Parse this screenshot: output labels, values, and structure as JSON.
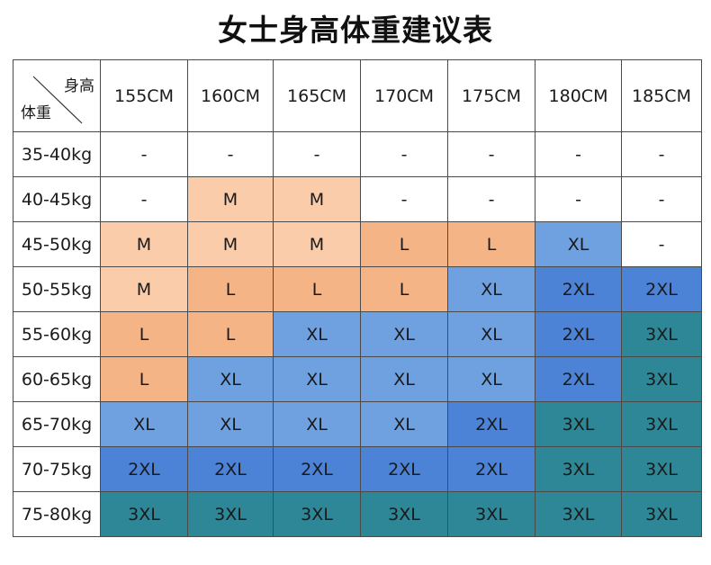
{
  "title": "女士身高体重建议表",
  "corner": {
    "height_label": "身高",
    "weight_label": "体重"
  },
  "heights": [
    "155CM",
    "160CM",
    "165CM",
    "170CM",
    "175CM",
    "180CM",
    "185CM"
  ],
  "rows": [
    {
      "weight": "35-40kg",
      "sizes": [
        "-",
        "-",
        "-",
        "-",
        "-",
        "-",
        "-"
      ]
    },
    {
      "weight": "40-45kg",
      "sizes": [
        "-",
        "M",
        "M",
        "-",
        "-",
        "-",
        "-"
      ]
    },
    {
      "weight": "45-50kg",
      "sizes": [
        "M",
        "M",
        "M",
        "L",
        "L",
        "XL",
        "-"
      ]
    },
    {
      "weight": "50-55kg",
      "sizes": [
        "M",
        "L",
        "L",
        "L",
        "XL",
        "2XL",
        "2XL"
      ]
    },
    {
      "weight": "55-60kg",
      "sizes": [
        "L",
        "L",
        "XL",
        "XL",
        "XL",
        "2XL",
        "3XL"
      ]
    },
    {
      "weight": "60-65kg",
      "sizes": [
        "L",
        "XL",
        "XL",
        "XL",
        "XL",
        "2XL",
        "3XL"
      ]
    },
    {
      "weight": "65-70kg",
      "sizes": [
        "XL",
        "XL",
        "XL",
        "XL",
        "2XL",
        "3XL",
        "3XL"
      ]
    },
    {
      "weight": "70-75kg",
      "sizes": [
        "2XL",
        "2XL",
        "2XL",
        "2XL",
        "2XL",
        "3XL",
        "3XL"
      ]
    },
    {
      "weight": "75-80kg",
      "sizes": [
        "3XL",
        "3XL",
        "3XL",
        "3XL",
        "3XL",
        "3XL",
        "3XL"
      ]
    }
  ],
  "size_colors": {
    "-": "#ffffff",
    "M": "#fbccaa",
    "L": "#f5b486",
    "XL": "#6fa0df",
    "2XL": "#4c83d6",
    "3XL": "#2e8796"
  }
}
